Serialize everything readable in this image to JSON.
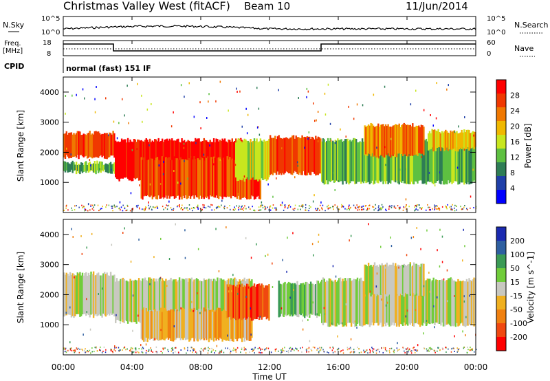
{
  "header": {
    "site": "Christmas Valley West (fitACF)",
    "beam": "Beam 10",
    "date": "11/Jun/2014"
  },
  "top_panels": {
    "nsky": {
      "label": "N.Sky",
      "tick_top": "10^5",
      "tick_bottom": "10^0"
    },
    "nsearch": {
      "label": "N.Search",
      "tick_top": "10^5",
      "tick_bottom": "10^0"
    },
    "freq": {
      "label_line1": "Freq.",
      "label_line2": "[MHz]",
      "tick_top": "18",
      "tick_bottom": "8"
    },
    "nave": {
      "label": "Nave",
      "tick_top": "60",
      "tick_bottom": "0"
    },
    "cpid": {
      "label": "CPID",
      "value": "normal (fast) 151 IF"
    }
  },
  "x_axis": {
    "label": "Time UT",
    "ticks": [
      "00:00",
      "04:00",
      "08:00",
      "12:00",
      "16:00",
      "20:00",
      "00:00"
    ]
  },
  "power_panel": {
    "ylabel": "Slant Range [km]",
    "yticks": [
      "1000",
      "2000",
      "3000",
      "4000"
    ],
    "colorbar_label": "Power [dB]",
    "colorbar_ticks": [
      "4",
      "8",
      "12",
      "16",
      "20",
      "24",
      "28"
    ],
    "colors": [
      "#0000ff",
      "#1f3fa8",
      "#2e7d55",
      "#5ec041",
      "#c8e61e",
      "#f0b800",
      "#f07800",
      "#f03800",
      "#ff0000"
    ]
  },
  "velocity_panel": {
    "ylabel": "Slant Range [km]",
    "yticks": [
      "1000",
      "2000",
      "3000",
      "4000"
    ],
    "colorbar_label": "Velocity [m s^-1]",
    "colorbar_ticks": [
      "200",
      "100",
      "50",
      "15",
      "-15",
      "-50",
      "-100",
      "-200"
    ],
    "colors": [
      "#1a2ab0",
      "#2e5fa0",
      "#3a9a55",
      "#70cc3a",
      "#c8c8c0",
      "#f0b020",
      "#f08010",
      "#f04810",
      "#ff0000"
    ]
  },
  "chart_data": [
    {
      "type": "heatmap",
      "title": "Christmas Valley West (fitACF)  Beam 10  11/Jun/2014",
      "quantity": "Power",
      "xlabel": "Time UT",
      "ylabel": "Slant Range [km]",
      "xlim": [
        "00:00",
        "24:00"
      ],
      "ylim": [
        0,
        4500
      ],
      "colorbar": {
        "label": "Power [dB]",
        "ticks": [
          4,
          8,
          12,
          16,
          20,
          24,
          28
        ]
      },
      "bands": [
        {
          "t0": 0,
          "t1": 3.0,
          "r0": 1850,
          "r1": 2650,
          "level": 7
        },
        {
          "t0": 0,
          "t1": 3.0,
          "r0": 1350,
          "r1": 1650,
          "level": 3
        },
        {
          "t0": 3.0,
          "t1": 10.5,
          "r0": 1100,
          "r1": 2400,
          "level": 8
        },
        {
          "t0": 4.5,
          "t1": 11.5,
          "r0": 500,
          "r1": 1800,
          "level": 7
        },
        {
          "t0": 10.0,
          "t1": 12.0,
          "r0": 1100,
          "r1": 2400,
          "level": 4
        },
        {
          "t0": 12.0,
          "t1": 15.0,
          "r0": 1300,
          "r1": 2500,
          "level": 7
        },
        {
          "t0": 15.0,
          "t1": 24.0,
          "r0": 1000,
          "r1": 2400,
          "level": 3
        },
        {
          "t0": 17.5,
          "t1": 21.0,
          "r0": 1900,
          "r1": 2900,
          "level": 6
        },
        {
          "t0": 21.2,
          "t1": 24.0,
          "r0": 2100,
          "r1": 2700,
          "level": 5
        }
      ]
    },
    {
      "type": "heatmap",
      "title": "Christmas Valley West (fitACF)  Beam 10  11/Jun/2014",
      "quantity": "Velocity",
      "xlabel": "Time UT",
      "ylabel": "Slant Range [km]",
      "xlim": [
        "00:00",
        "24:00"
      ],
      "ylim": [
        0,
        4500
      ],
      "colorbar": {
        "label": "Velocity [m s^-1]",
        "ticks": [
          200,
          100,
          50,
          15,
          -15,
          -50,
          -100,
          -200
        ]
      },
      "bands": [
        {
          "t0": 0,
          "t1": 3.0,
          "r0": 1300,
          "r1": 2700,
          "level": 4
        },
        {
          "t0": 3.0,
          "t1": 11.0,
          "r0": 1100,
          "r1": 2500,
          "level": 4
        },
        {
          "t0": 4.5,
          "t1": 11.0,
          "r0": 500,
          "r1": 1500,
          "level": 5
        },
        {
          "t0": 9.5,
          "t1": 12.0,
          "r0": 1200,
          "r1": 2300,
          "level": 7
        },
        {
          "t0": 12.5,
          "t1": 15.0,
          "r0": 1300,
          "r1": 2400,
          "level": 3
        },
        {
          "t0": 15.0,
          "t1": 24.0,
          "r0": 1000,
          "r1": 2500,
          "level": 4
        },
        {
          "t0": 17.5,
          "t1": 21.0,
          "r0": 2000,
          "r1": 3000,
          "level": 4
        }
      ]
    }
  ]
}
